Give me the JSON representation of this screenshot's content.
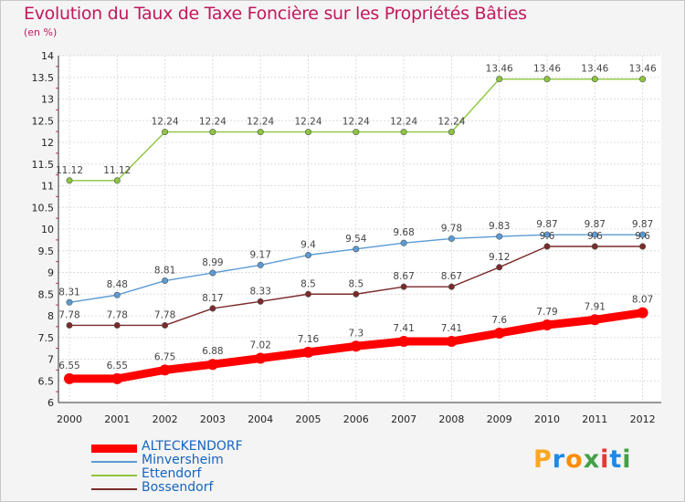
{
  "title": "Evolution du Taux de Taxe Foncière sur les Propriétés Bâties",
  "subtitle": "(en %)",
  "logo": {
    "letters": [
      "P",
      "r",
      "o",
      "x",
      "i",
      "t",
      "i"
    ],
    "colors": [
      "#f9a825",
      "#1e88e5",
      "#fb8c00",
      "#43a047",
      "#e53935",
      "#1e88e5",
      "#43a047"
    ]
  },
  "chart_data": {
    "type": "line",
    "title": "Evolution du Taux de Taxe Foncière sur les Propriétés Bâties",
    "ylabel": "(en %)",
    "xlabel": "",
    "x": [
      "2000",
      "2001",
      "2002",
      "2003",
      "2004",
      "2005",
      "2006",
      "2007",
      "2008",
      "2009",
      "2010",
      "2011",
      "2012"
    ],
    "ylim": [
      6,
      14
    ],
    "yticks": [
      "6",
      "6.5",
      "7",
      "7.5",
      "8",
      "8.5",
      "9",
      "9.5",
      "10",
      "10.5",
      "11",
      "11.5",
      "12",
      "12.5",
      "13",
      "13.5",
      "14"
    ],
    "grid": true,
    "legend_position": "bottom-left",
    "series": [
      {
        "name": "ALTECKENDORF",
        "color": "#ff0000",
        "values": [
          6.55,
          6.55,
          6.75,
          6.88,
          7.02,
          7.16,
          7.3,
          7.41,
          7.41,
          7.6,
          7.79,
          7.91,
          8.07
        ],
        "labels": [
          "6.55",
          "6.55",
          "6.75",
          "6.88",
          "7.02",
          "7.16",
          "7.3",
          "7.41",
          "7.41",
          "7.6",
          "7.79",
          "7.91",
          "8.07"
        ]
      },
      {
        "name": "Minversheim",
        "color": "#5b9bd5",
        "values": [
          8.31,
          8.48,
          8.81,
          8.99,
          9.17,
          9.4,
          9.54,
          9.68,
          9.78,
          9.83,
          9.87,
          9.87,
          9.87
        ],
        "labels": [
          "8.31",
          "8.48",
          "8.81",
          "8.99",
          "9.17",
          "9.4",
          "9.54",
          "9.68",
          "9.78",
          "9.83",
          "9.87",
          "9.87",
          "9.87"
        ]
      },
      {
        "name": "Ettendorf",
        "color": "#8dc63f",
        "values": [
          11.12,
          11.12,
          12.24,
          12.24,
          12.24,
          12.24,
          12.24,
          12.24,
          12.24,
          13.46,
          13.46,
          13.46,
          13.46
        ],
        "labels": [
          "11.12",
          "11.12",
          "12.24",
          "12.24",
          "12.24",
          "12.24",
          "12.24",
          "12.24",
          "12.24",
          "13.46",
          "13.46",
          "13.46",
          "13.46"
        ]
      },
      {
        "name": "Bossendorf",
        "color": "#7b2a2a",
        "values": [
          7.78,
          7.78,
          7.78,
          8.17,
          8.33,
          8.5,
          8.5,
          8.67,
          8.67,
          9.12,
          9.6,
          9.6,
          9.6
        ],
        "labels": [
          "7.78",
          "7.78",
          "7.78",
          "8.17",
          "8.33",
          "8.5",
          "8.5",
          "8.67",
          "8.67",
          "9.12",
          "9.6",
          "9.6",
          "9.6"
        ]
      }
    ]
  }
}
